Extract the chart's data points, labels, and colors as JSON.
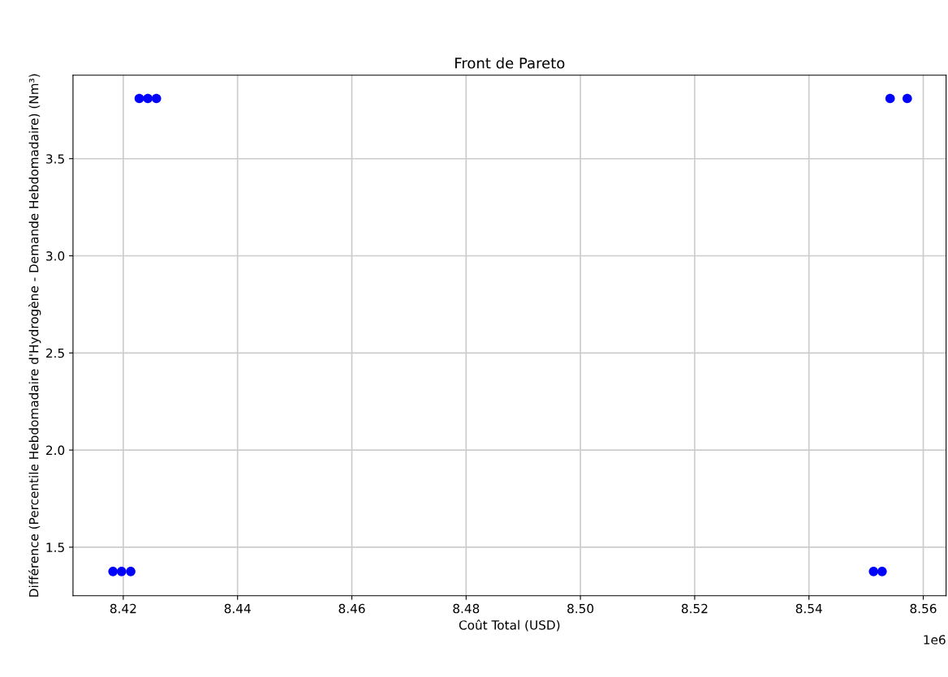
{
  "chart_data": {
    "type": "scatter",
    "title": "Front de Pareto",
    "xlabel": "Coût Total (USD)",
    "ylabel": "Différence (Percentile Hebdomadaire d'Hydrogène - Demande Hebdomadaire) (Nm³)",
    "x": [
      8.4182,
      8.4197,
      8.4213,
      8.4228,
      8.4243,
      8.4258,
      8.5513,
      8.5528,
      8.5542,
      8.5572
    ],
    "values": [
      1.375,
      1.375,
      1.375,
      3.81,
      3.81,
      3.81,
      1.375,
      1.375,
      3.81,
      3.81
    ],
    "color": "#0000ff",
    "marker": "circle",
    "grid": true,
    "xlim": [
      8.4112,
      8.564
    ],
    "ylim": [
      1.25,
      3.93
    ],
    "xticks": [
      8.42,
      8.44,
      8.46,
      8.48,
      {
        "value": 8.5,
        "label": "8.50"
      },
      8.52,
      8.54,
      8.56
    ],
    "yticks": [
      1.5,
      {
        "value": 2,
        "label": "2.0"
      },
      2.5,
      {
        "value": 3,
        "label": "3.0"
      },
      3.5
    ],
    "annotations": [
      "1e6"
    ]
  }
}
